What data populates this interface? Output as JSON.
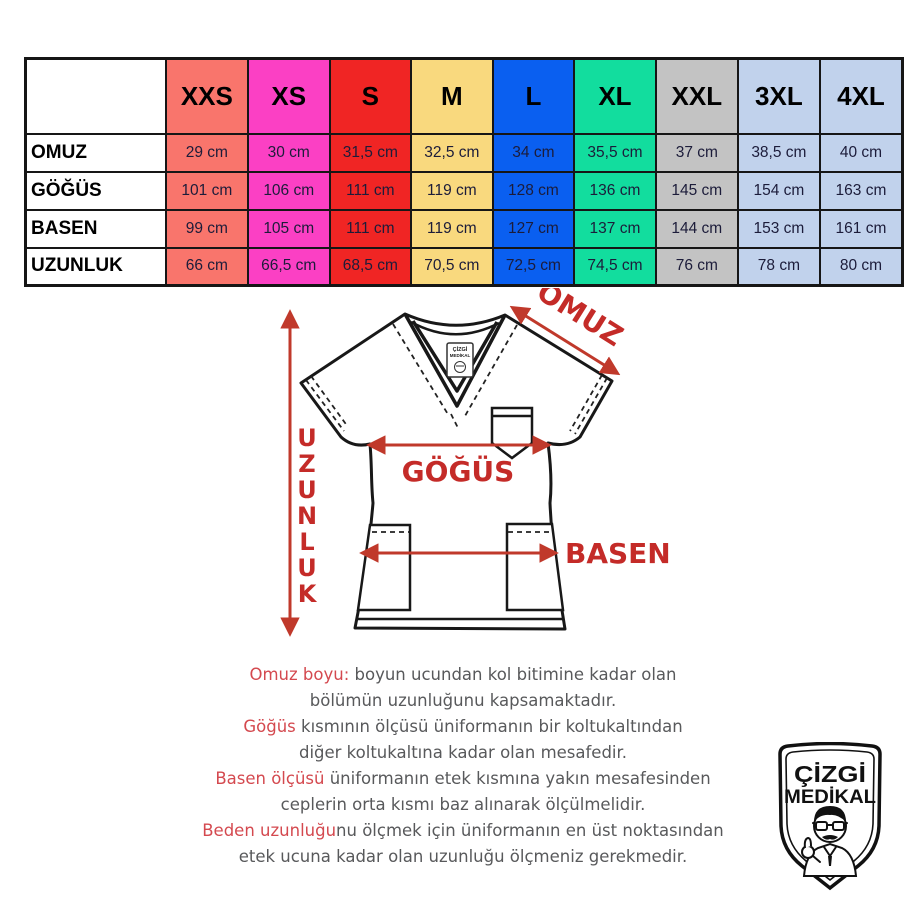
{
  "colors": {
    "accent_red": "#C42B28",
    "arrow_red": "#C0392B",
    "highlight_red": "#D4494F",
    "text_gray": "#58595B",
    "cell_text": "#1C1C3A",
    "border_black": "#161616"
  },
  "table": {
    "corner_label": "",
    "columns": [
      {
        "label": "XXS",
        "color": "#F9756C"
      },
      {
        "label": "XS",
        "color": "#FB40C4"
      },
      {
        "label": "S",
        "color": "#F02524"
      },
      {
        "label": "M",
        "color": "#F9D97E"
      },
      {
        "label": "L",
        "color": "#0A5FF0"
      },
      {
        "label": "XL",
        "color": "#12DD9E"
      },
      {
        "label": "XXL",
        "color": "#C3C3C3"
      },
      {
        "label": "3XL",
        "color": "#C1D2EC"
      },
      {
        "label": "4XL",
        "color": "#C1D2EC"
      }
    ],
    "rows": [
      {
        "label": "OMUZ",
        "values": [
          "29 cm",
          "30 cm",
          "31,5 cm",
          "32,5 cm",
          "34 cm",
          "35,5 cm",
          "37 cm",
          "38,5 cm",
          "40 cm"
        ]
      },
      {
        "label": "GÖĞÜS",
        "values": [
          "101 cm",
          "106 cm",
          "111 cm",
          "119 cm",
          "128 cm",
          "136 cm",
          "145 cm",
          "154 cm",
          "163 cm"
        ]
      },
      {
        "label": "BASEN",
        "values": [
          "99 cm",
          "105 cm",
          "111 cm",
          "119 cm",
          "127 cm",
          "137 cm",
          "144 cm",
          "153 cm",
          "161 cm"
        ]
      },
      {
        "label": "UZUNLUK",
        "values": [
          "66 cm",
          "66,5 cm",
          "68,5 cm",
          "70,5 cm",
          "72,5 cm",
          "74,5 cm",
          "76 cm",
          "78 cm",
          "80 cm"
        ]
      }
    ]
  },
  "diagram": {
    "uzunluk_label": "UZUNLUK",
    "omuz_label": "OMUZ",
    "gogus_label": "GÖĞÜS",
    "basen_label": "BASEN"
  },
  "descriptions": [
    {
      "highlight": "Omuz boyu:",
      "rest": " boyun ucundan kol bitimine kadar olan",
      "second_line": "bölümün uzunluğunu kapsamaktadır."
    },
    {
      "highlight": "Göğüs",
      "rest": " kısmının ölçüsü üniformanın bir koltukaltından",
      "second_line": "diğer koltukaltına kadar olan mesafedir."
    },
    {
      "highlight": "Basen ölçüsü",
      "rest": " üniformanın etek kısmına yakın mesafesinden",
      "second_line": "ceplerin orta kısmı baz alınarak ölçülmelidir."
    },
    {
      "highlight": "Beden uzunluğu",
      "rest": "nu ölçmek için üniformanın en üst noktasından",
      "second_line": "etek ucuna kadar olan uzunluğu ölçmeniz gerekmedir."
    }
  ],
  "logo": {
    "line1": "ÇİZGİ",
    "line2": "MEDİKAL"
  }
}
